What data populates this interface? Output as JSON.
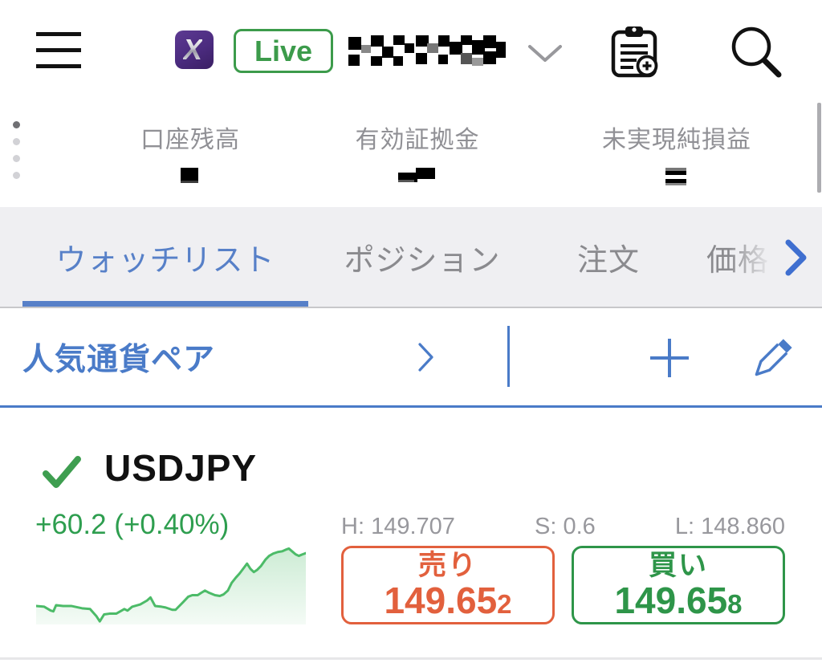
{
  "colors": {
    "accent_blue": "#4A7BC8",
    "tab_inactive_gray": "#8A8A8E",
    "label_gray": "#909095",
    "hsl_gray": "#98989D",
    "sell_orange": "#E2603D",
    "buy_green": "#2E9549",
    "live_green": "#3C9B4B",
    "check_green": "#3E9E50",
    "change_green": "#2E9E4F",
    "chart_line_green": "#4CBB68",
    "logo_purple": "#4B2B7F",
    "tabbar_bg": "#EFEFF2"
  },
  "header": {
    "logo_glyph": "X",
    "live_label": "Live"
  },
  "account_summary": {
    "items": [
      {
        "label": "口座残高"
      },
      {
        "label": "有効証拠金"
      },
      {
        "label": "未実現純損益"
      }
    ]
  },
  "tabs": [
    {
      "label": "ウォッチリスト",
      "active": true
    },
    {
      "label": "ポジション",
      "active": false
    },
    {
      "label": "注文",
      "active": false
    },
    {
      "label": "価格",
      "active": false
    }
  ],
  "watchlist_section": {
    "title": "人気通貨ペア"
  },
  "instrument": {
    "symbol": "USDJPY",
    "change": "+60.2 (+0.40%)",
    "high_label": "H:",
    "high": "149.707",
    "spread_label": "S:",
    "spread": "0.6",
    "low_label": "L:",
    "low": "148.860",
    "sell_label": "売り",
    "sell_price_main": "149.65",
    "sell_price_pip": "2",
    "buy_label": "買い",
    "buy_price_main": "149.65",
    "buy_price_pip": "8"
  },
  "chart_data": {
    "type": "area",
    "title": "USDJPY intraday sparkline",
    "x_range": [
      0,
      100
    ],
    "y_range": [
      0,
      100
    ],
    "y_inverted": true,
    "grid": false,
    "legend": false,
    "points": [
      [
        0,
        76
      ],
      [
        3,
        77
      ],
      [
        5.4,
        82
      ],
      [
        6.4,
        83
      ],
      [
        7.4,
        75
      ],
      [
        10,
        76
      ],
      [
        13,
        76
      ],
      [
        17,
        79
      ],
      [
        20,
        80
      ],
      [
        22.3,
        89
      ],
      [
        23.6,
        96
      ],
      [
        25.2,
        87
      ],
      [
        27.2,
        86
      ],
      [
        29.7,
        86
      ],
      [
        32.7,
        80
      ],
      [
        33.9,
        82
      ],
      [
        35.6,
        77
      ],
      [
        38.6,
        74
      ],
      [
        41.1,
        69
      ],
      [
        42.4,
        65
      ],
      [
        44.1,
        76
      ],
      [
        46.5,
        77
      ],
      [
        48,
        78
      ],
      [
        50.5,
        81
      ],
      [
        51.7,
        81
      ],
      [
        54.5,
        71
      ],
      [
        56.4,
        64
      ],
      [
        57.9,
        62
      ],
      [
        59.9,
        62
      ],
      [
        61.2,
        59
      ],
      [
        62.6,
        56
      ],
      [
        64.2,
        59
      ],
      [
        66.3,
        62
      ],
      [
        68.1,
        63
      ],
      [
        69.5,
        61
      ],
      [
        71.1,
        56
      ],
      [
        72.5,
        46
      ],
      [
        74.1,
        39
      ],
      [
        75.4,
        34
      ],
      [
        76.7,
        28
      ],
      [
        78.2,
        21
      ],
      [
        79.5,
        28
      ],
      [
        80.7,
        32
      ],
      [
        82,
        29
      ],
      [
        83.4,
        24
      ],
      [
        85,
        16
      ],
      [
        86.4,
        11
      ],
      [
        87.9,
        8
      ],
      [
        89.6,
        6
      ],
      [
        91.3,
        5
      ],
      [
        92.9,
        2.5
      ],
      [
        93.7,
        1.5
      ],
      [
        95,
        5.4
      ],
      [
        96.2,
        9
      ],
      [
        97.4,
        11
      ],
      [
        98.8,
        9
      ],
      [
        100,
        7.5
      ]
    ]
  }
}
